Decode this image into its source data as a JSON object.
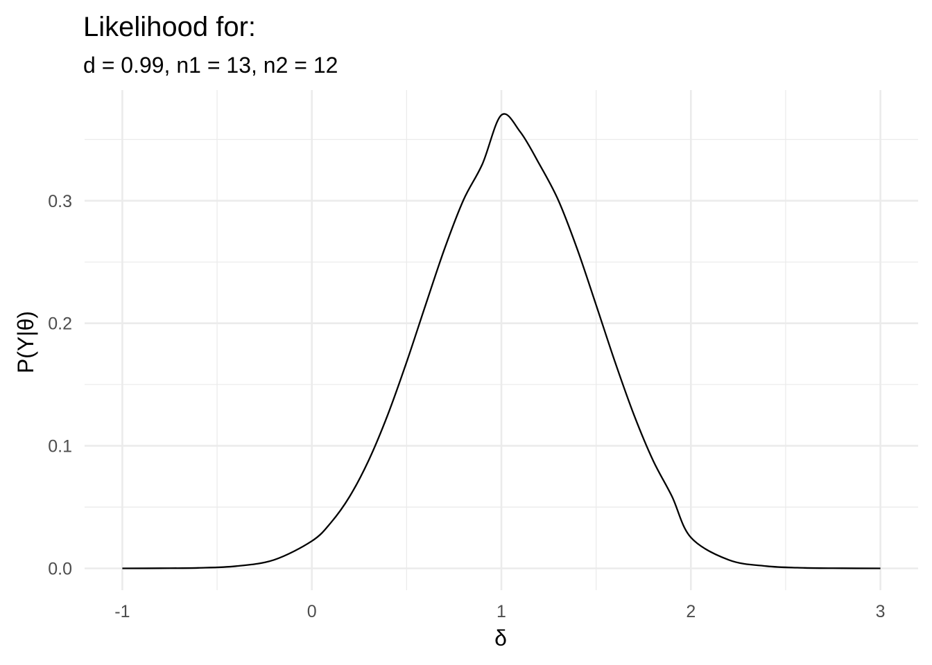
{
  "chart_data": {
    "type": "line",
    "title": "Likelihood for:",
    "subtitle": "d = 0.99, n1 = 13, n2 = 12",
    "xlabel": "δ",
    "ylabel": "P(Y|θ)",
    "xlim": [
      -1,
      3
    ],
    "ylim": [
      0,
      0.37
    ],
    "x_ticks": [
      -1,
      0,
      1,
      2,
      3
    ],
    "x_tick_labels": [
      "-1",
      "0",
      "1",
      "2",
      "3"
    ],
    "y_ticks": [
      0.0,
      0.1,
      0.2,
      0.3
    ],
    "y_tick_labels": [
      "0.0",
      "0.1",
      "0.2",
      "0.3"
    ],
    "grid": true,
    "legend": "none",
    "series": [
      {
        "color": "#000000",
        "x": [
          -1.0,
          -0.8,
          -0.6,
          -0.4,
          -0.2,
          0.0,
          0.1,
          0.2,
          0.3,
          0.4,
          0.5,
          0.6,
          0.7,
          0.8,
          0.9,
          1.0,
          1.1,
          1.2,
          1.3,
          1.4,
          1.5,
          1.6,
          1.7,
          1.8,
          1.9,
          2.0,
          2.2,
          2.4,
          2.6,
          2.8,
          3.0
        ],
        "y": [
          0.0,
          0.0001,
          0.0004,
          0.0018,
          0.0069,
          0.0223,
          0.0372,
          0.0588,
          0.0882,
          0.1251,
          0.1683,
          0.2149,
          0.2607,
          0.3006,
          0.33,
          0.3699,
          0.3561,
          0.33,
          0.3006,
          0.2607,
          0.2149,
          0.1683,
          0.1251,
          0.0882,
          0.0588,
          0.0252,
          0.0069,
          0.0018,
          0.0004,
          0.0001,
          0.0
        ]
      }
    ]
  }
}
